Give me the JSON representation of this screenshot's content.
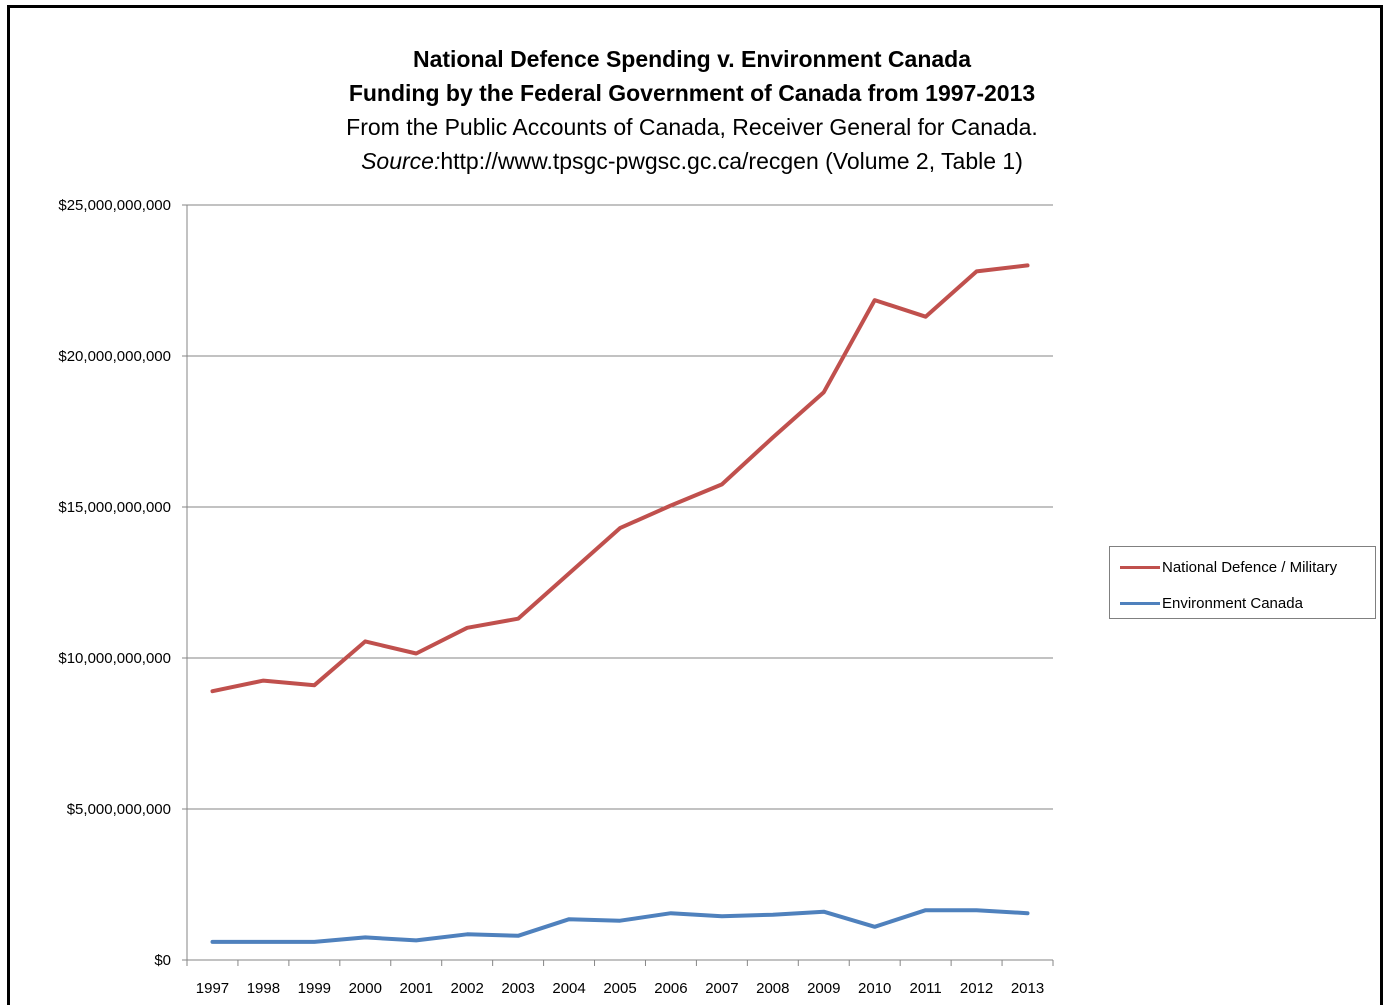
{
  "chart_data": {
    "type": "line",
    "title": "National Defence Spending v. Environment Canada",
    "subtitle": "Funding by the Federal Government of Canada from 1997-2013",
    "note": "From the Public Accounts of Canada, Receiver General for Canada.",
    "source_label": "Source:",
    "source_text": "http://www.tpsgc-pwgsc.gc.ca/recgen (Volume 2, Table 1)",
    "xlabel": "",
    "ylabel": "",
    "ylim": [
      0,
      25000000000
    ],
    "yticks": [
      0,
      5000000000,
      10000000000,
      15000000000,
      20000000000,
      25000000000
    ],
    "ytick_labels": [
      "$0",
      "$5,000,000,000",
      "$10,000,000,000",
      "$15,000,000,000",
      "$20,000,000,000",
      "$25,000,000,000"
    ],
    "grid": true,
    "legend_position": "right",
    "categories": [
      "1997",
      "1998",
      "1999",
      "2000",
      "2001",
      "2002",
      "2003",
      "2004",
      "2005",
      "2006",
      "2007",
      "2008",
      "2009",
      "2010",
      "2011",
      "2012",
      "2013"
    ],
    "series": [
      {
        "name": "National Defence / Military",
        "color": "#c0504d",
        "values": [
          8900000000,
          9250000000,
          9100000000,
          10550000000,
          10150000000,
          11000000000,
          11300000000,
          12800000000,
          14300000000,
          15050000000,
          15750000000,
          17300000000,
          18800000000,
          21850000000,
          21300000000,
          22800000000,
          23000000000
        ]
      },
      {
        "name": "Environment Canada",
        "color": "#4f81bd",
        "values": [
          600000000,
          600000000,
          600000000,
          750000000,
          650000000,
          850000000,
          800000000,
          1350000000,
          1300000000,
          1550000000,
          1450000000,
          1500000000,
          1600000000,
          1100000000,
          1650000000,
          1650000000,
          1550000000
        ]
      }
    ]
  }
}
